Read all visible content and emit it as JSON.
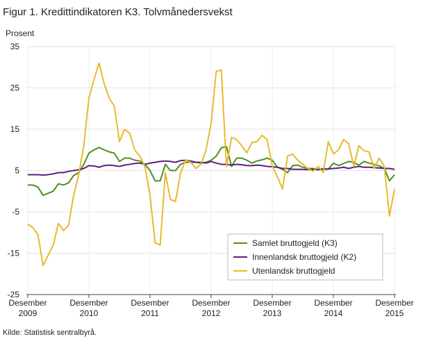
{
  "chart_data": {
    "type": "line",
    "title": "Figur 1. Kredittindikatoren K3. Tolvmånedersvekst",
    "y_label": "Prosent",
    "source": "Kilde: Statistisk sentralbyrå.",
    "categories": [
      "Desember 2009",
      null,
      null,
      null,
      null,
      null,
      null,
      null,
      null,
      null,
      null,
      null,
      "Desember 2010",
      null,
      null,
      null,
      null,
      null,
      null,
      null,
      null,
      null,
      null,
      null,
      "Desember 2011",
      null,
      null,
      null,
      null,
      null,
      null,
      null,
      null,
      null,
      null,
      null,
      "Desember 2012",
      null,
      null,
      null,
      null,
      null,
      null,
      null,
      null,
      null,
      null,
      null,
      "Desember 2013",
      null,
      null,
      null,
      null,
      null,
      null,
      null,
      null,
      null,
      null,
      null,
      "Desember 2014",
      null,
      null,
      null,
      null,
      null,
      null,
      null,
      null,
      null,
      null,
      null,
      "Desember 2015"
    ],
    "series": [
      {
        "name": "Samlet bruttogjeld (K3)",
        "color": "#4e8f1f",
        "values": [
          1.5,
          1.5,
          1,
          -1,
          -0.5,
          0,
          1.8,
          1.5,
          2,
          3.8,
          4.5,
          6.5,
          9.2,
          10,
          10.6,
          10,
          9.5,
          9.2,
          7.2,
          8,
          8,
          7.5,
          7.3,
          6.5,
          5,
          2.5,
          2.5,
          6.5,
          5,
          5,
          6.5,
          7,
          7,
          7,
          6.8,
          7,
          7.5,
          8.5,
          10.5,
          10.8,
          6,
          8,
          8,
          7.5,
          6.8,
          7.3,
          7.6,
          8,
          7.5,
          5.8,
          5.3,
          4.5,
          6.2,
          6.3,
          5.8,
          5.5,
          5.5,
          5.3,
          5.5,
          5.3,
          6.8,
          6.2,
          6.7,
          7.2,
          7,
          6.3,
          7.2,
          6.8,
          6.5,
          6.1,
          5.5,
          2.5,
          4
        ]
      },
      {
        "name": "Innenlandsk bruttogjeld (K2)",
        "color": "#5b1e7d",
        "values": [
          4,
          4,
          4,
          3.9,
          4,
          4.2,
          4.5,
          4.5,
          4.8,
          5,
          5.2,
          5.5,
          6.2,
          6.1,
          5.8,
          6.2,
          6.3,
          6.2,
          6,
          6.3,
          6.5,
          6.7,
          6.8,
          6.5,
          6.8,
          7,
          7.2,
          7.3,
          7.2,
          7,
          7.4,
          7.5,
          7.3,
          7,
          7,
          6.8,
          7.2,
          6.8,
          6.5,
          6.5,
          6.3,
          6.5,
          6.4,
          6.2,
          6.2,
          6.3,
          6.2,
          6,
          5.9,
          5.8,
          5.5,
          5.5,
          5.3,
          5.3,
          5.3,
          5.2,
          5.3,
          5.2,
          5.3,
          5.4,
          5.5,
          5.6,
          5.8,
          5.5,
          5.8,
          6,
          5.8,
          5.8,
          5.7,
          5.6,
          5.5,
          5.5,
          5.3
        ]
      },
      {
        "name": "Utenlandsk bruttogjeld",
        "color": "#e8b92d",
        "values": [
          -8,
          -8.8,
          -10.5,
          -18,
          -15.5,
          -13,
          -7.8,
          -9.5,
          -8.3,
          -1,
          4,
          11,
          22.5,
          27,
          31,
          26,
          22.5,
          20.5,
          12,
          15,
          14,
          10,
          8.5,
          6,
          -1,
          -12.5,
          -13,
          4.5,
          -2,
          -2.5,
          4.5,
          7.5,
          7,
          5.5,
          6.5,
          10,
          16.5,
          29,
          29.3,
          6,
          13,
          12.5,
          11,
          9.3,
          11.8,
          12,
          13.5,
          12.5,
          6,
          3.5,
          0.5,
          8.5,
          9,
          7.5,
          6.5,
          5.5,
          4.8,
          6,
          4.5,
          12,
          9,
          10,
          12.5,
          11.5,
          6,
          11,
          9.8,
          9.5,
          5.5,
          8,
          6,
          -6,
          0.5
        ]
      }
    ],
    "ylim": [
      -25,
      35
    ],
    "yticks": [
      -25,
      -15,
      -5,
      5,
      15,
      25,
      35
    ],
    "grid": true,
    "legend": "lower right"
  }
}
